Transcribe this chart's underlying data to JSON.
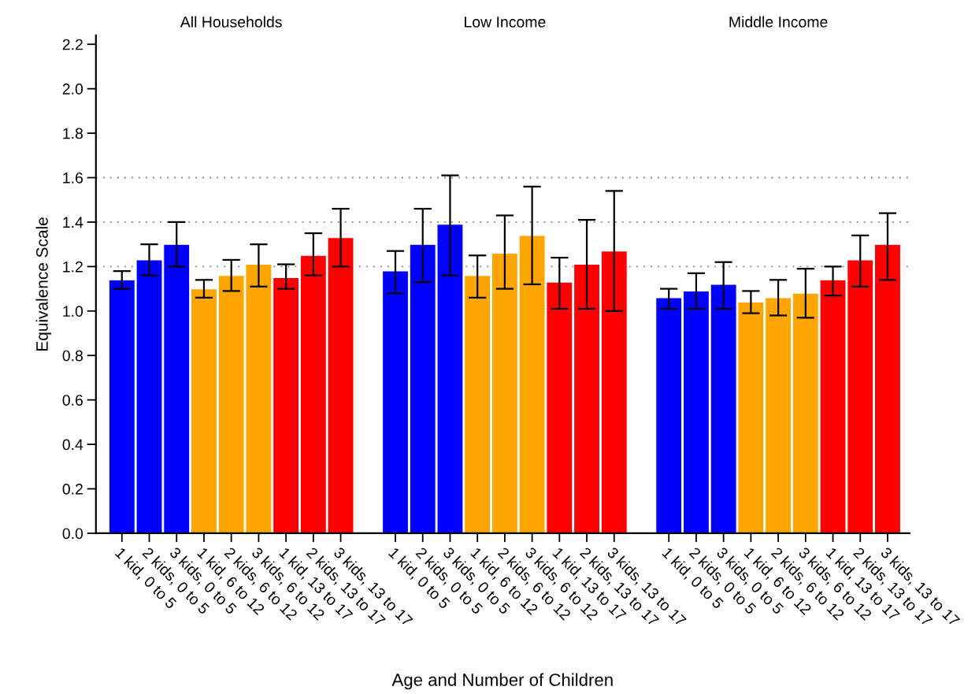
{
  "chart_data": {
    "type": "bar",
    "ylabel": "Equivalence Scale",
    "xlabel": "Age and Number of Children",
    "annotations": [
      "All Households",
      "Low Income",
      "Middle Income"
    ],
    "categories": [
      "1 kid, 0 to 5",
      "2 kids, 0 to 5",
      "3 kids, 0 to 5",
      "1 kid, 6 to 12",
      "2 kids, 6 to 12",
      "3 kids, 6 to 12",
      "1 kid, 13 to 17",
      "2 kids, 13 to 17",
      "3 kids, 13 to 17",
      null,
      "1 kid, 0 to 5",
      "2 kids, 0 to 5",
      "3 kids, 0 to 5",
      "1 kid, 6 to 12",
      "2 kids, 6 to 12",
      "3 kids, 6 to 12",
      "1 kid, 13 to 17",
      "2 kids, 13 to 17",
      "3 kids, 13 to 17",
      null,
      "1 kid, 0 to 5",
      "2 kids, 0 to 5",
      "3 kids, 0 to 5",
      "1 kid, 6 to 12",
      "2 kids, 6 to 12",
      "3 kids, 6 to 12",
      "1 kid, 13 to 17",
      "2 kids, 13 to 17",
      "3 kids, 13 to 17"
    ],
    "values": [
      1.14,
      1.23,
      1.3,
      1.1,
      1.16,
      1.21,
      1.15,
      1.25,
      1.33,
      null,
      1.18,
      1.3,
      1.39,
      1.16,
      1.26,
      1.34,
      1.13,
      1.21,
      1.27,
      null,
      1.06,
      1.09,
      1.12,
      1.04,
      1.06,
      1.08,
      1.14,
      1.23,
      1.3
    ],
    "errors": [
      [
        1.1,
        1.18
      ],
      [
        1.16,
        1.3
      ],
      [
        1.2,
        1.4
      ],
      [
        1.06,
        1.14
      ],
      [
        1.09,
        1.23
      ],
      [
        1.11,
        1.3
      ],
      [
        1.1,
        1.21
      ],
      [
        1.16,
        1.35
      ],
      [
        1.2,
        1.46
      ],
      null,
      [
        1.08,
        1.27
      ],
      [
        1.13,
        1.46
      ],
      [
        1.16,
        1.61
      ],
      [
        1.06,
        1.25
      ],
      [
        1.1,
        1.43
      ],
      [
        1.12,
        1.56
      ],
      [
        1.01,
        1.24
      ],
      [
        1.01,
        1.41
      ],
      [
        1.0,
        1.54
      ],
      null,
      [
        1.01,
        1.1
      ],
      [
        1.01,
        1.17
      ],
      [
        1.01,
        1.22
      ],
      [
        0.99,
        1.09
      ],
      [
        0.98,
        1.14
      ],
      [
        0.97,
        1.19
      ],
      [
        1.07,
        1.2
      ],
      [
        1.11,
        1.34
      ],
      [
        1.14,
        1.44
      ]
    ],
    "colors": [
      "#0000ff",
      "#0000ff",
      "#0000ff",
      "#ffa500",
      "#ffa500",
      "#ffa500",
      "#ff0000",
      "#ff0000",
      "#ff0000",
      null,
      "#0000ff",
      "#0000ff",
      "#0000ff",
      "#ffa500",
      "#ffa500",
      "#ffa500",
      "#ff0000",
      "#ff0000",
      "#ff0000",
      null,
      "#0000ff",
      "#0000ff",
      "#0000ff",
      "#ffa500",
      "#ffa500",
      "#ffa500",
      "#ff0000",
      "#ff0000",
      "#ff0000"
    ],
    "ylim": [
      0,
      2.24
    ],
    "yticks": [
      {
        "value": 0,
        "label": "0.0"
      },
      0.2,
      0.4,
      0.6,
      0.8,
      {
        "value": 1,
        "label": "1.0"
      },
      1.2,
      1.4,
      1.6,
      1.8,
      {
        "value": 2,
        "label": "2.0"
      },
      2.2
    ],
    "ref_lines": [
      {
        "axis": "y",
        "value": 1.2,
        "color": "#808080",
        "line_style": "dotted"
      },
      {
        "axis": "y",
        "value": 1.4,
        "color": "#808080",
        "line_style": "dotted"
      },
      {
        "axis": "y",
        "value": 1.6,
        "color": "#808080",
        "line_style": "dotted"
      }
    ],
    "grid": false,
    "legend": false
  }
}
